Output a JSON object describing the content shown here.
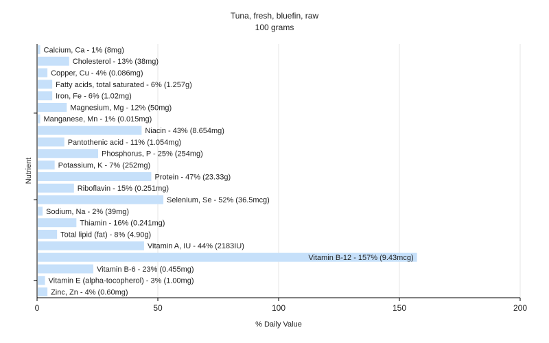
{
  "chart_data": {
    "type": "bar",
    "orientation": "horizontal",
    "title": "Tuna, fresh, bluefin, raw",
    "subtitle": "100 grams",
    "xlabel": "% Daily Value",
    "ylabel": "Nutrient",
    "xlim": [
      0,
      200
    ],
    "xticks": [
      "0",
      "50",
      "100",
      "150",
      "200"
    ],
    "grid": true,
    "bar_color": "#c6e0fa",
    "categories": [
      "Calcium, Ca",
      "Cholesterol",
      "Copper, Cu",
      "Fatty acids, total saturated",
      "Iron, Fe",
      "Magnesium, Mg",
      "Manganese, Mn",
      "Niacin",
      "Pantothenic acid",
      "Phosphorus, P",
      "Potassium, K",
      "Protein",
      "Riboflavin",
      "Selenium, Se",
      "Sodium, Na",
      "Thiamin",
      "Total lipid (fat)",
      "Vitamin A, IU",
      "Vitamin B-12",
      "Vitamin B-6",
      "Vitamin E (alpha-tocopherol)",
      "Zinc, Zn"
    ],
    "values": [
      1,
      13,
      4,
      6,
      6,
      12,
      1,
      43,
      11,
      25,
      7,
      47,
      15,
      52,
      2,
      16,
      8,
      44,
      157,
      23,
      3,
      4
    ],
    "labels": [
      "Calcium, Ca - 1% (8mg)",
      "Cholesterol - 13% (38mg)",
      "Copper, Cu - 4% (0.086mg)",
      "Fatty acids, total saturated - 6% (1.257g)",
      "Iron, Fe - 6% (1.02mg)",
      "Magnesium, Mg - 12% (50mg)",
      "Manganese, Mn - 1% (0.015mg)",
      "Niacin - 43% (8.654mg)",
      "Pantothenic acid - 11% (1.054mg)",
      "Phosphorus, P - 25% (254mg)",
      "Potassium, K - 7% (252mg)",
      "Protein - 47% (23.33g)",
      "Riboflavin - 15% (0.251mg)",
      "Selenium, Se - 52% (36.5mcg)",
      "Sodium, Na - 2% (39mg)",
      "Thiamin - 16% (0.241mg)",
      "Total lipid (fat) - 8% (4.90g)",
      "Vitamin A, IU - 44% (2183IU)",
      "Vitamin B-12 - 157% (9.43mcg)",
      "Vitamin B-6 - 23% (0.455mg)",
      "Vitamin E (alpha-tocopherol) - 3% (1.00mg)",
      "Zinc, Zn - 4% (0.60mg)"
    ]
  }
}
